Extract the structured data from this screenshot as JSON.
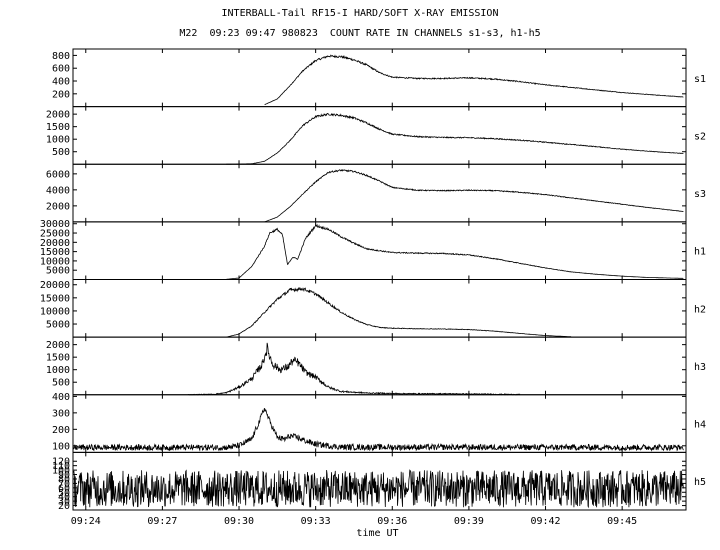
{
  "chart_data": {
    "type": "line",
    "title": "INTERBALL-Tail RF15-I HARD/SOFT X-RAY EMISSION",
    "subtitle": "M22  09:23 09:47 980823  COUNT RATE IN CHANNELS s1-s3, h1-h5",
    "xlabel": "time UT",
    "x_unit": "minutes after 09:00 UT",
    "xlim": [
      23.5,
      47.5
    ],
    "x_ticks": [
      24,
      27,
      30,
      33,
      36,
      39,
      42,
      45
    ],
    "x_tick_labels": [
      "09:24",
      "09:27",
      "09:30",
      "09:33",
      "09:36",
      "09:39",
      "09:42",
      "09:45"
    ],
    "panels": [
      {
        "name": "s1",
        "ylim": [
          0,
          900
        ],
        "yticks": [
          200,
          400,
          600,
          800
        ],
        "noise": 0.02,
        "noise_floor": 0,
        "x": [
          31.0,
          31.5,
          32.0,
          32.5,
          33.0,
          33.5,
          34.0,
          34.5,
          35.0,
          35.5,
          36.0,
          37.0,
          38.0,
          39.0,
          40.0,
          41.0,
          42.0,
          43.0,
          44.0,
          45.0,
          46.0,
          47.4
        ],
        "y": [
          30,
          120,
          330,
          560,
          720,
          790,
          780,
          730,
          650,
          530,
          460,
          440,
          440,
          450,
          430,
          390,
          340,
          300,
          260,
          220,
          190,
          150
        ]
      },
      {
        "name": "s2",
        "ylim": [
          0,
          2300
        ],
        "yticks": [
          500,
          1000,
          1500,
          2000
        ],
        "noise": 0.02,
        "noise_floor": 0,
        "x": [
          29.5,
          30.5,
          31.0,
          31.5,
          32.0,
          32.5,
          33.0,
          33.5,
          34.0,
          34.5,
          35.0,
          35.5,
          36.0,
          37.0,
          38.0,
          39.0,
          40.0,
          41.0,
          42.0,
          43.0,
          44.0,
          45.0,
          46.0,
          47.4
        ],
        "y": [
          0,
          20,
          120,
          450,
          950,
          1550,
          1900,
          2000,
          1950,
          1850,
          1650,
          1400,
          1200,
          1100,
          1070,
          1060,
          1020,
          960,
          880,
          790,
          700,
          600,
          520,
          430
        ]
      },
      {
        "name": "s3",
        "ylim": [
          0,
          7200
        ],
        "yticks": [
          2000,
          4000,
          6000
        ],
        "noise": 0.015,
        "noise_floor": 0,
        "x": [
          31.0,
          31.5,
          32.0,
          32.5,
          33.0,
          33.5,
          34.0,
          34.5,
          35.0,
          35.5,
          36.0,
          37.0,
          38.0,
          39.0,
          40.0,
          41.0,
          42.0,
          43.0,
          44.0,
          45.0,
          46.0,
          47.4
        ],
        "y": [
          0,
          600,
          1900,
          3500,
          5000,
          6200,
          6450,
          6300,
          5800,
          5100,
          4300,
          3950,
          3900,
          3950,
          3900,
          3700,
          3400,
          3000,
          2600,
          2200,
          1800,
          1300
        ]
      },
      {
        "name": "h1",
        "ylim": [
          0,
          31000
        ],
        "yticks": [
          5000,
          10000,
          15000,
          20000,
          25000,
          30000
        ],
        "noise": 0.02,
        "noise_floor": 0,
        "x": [
          29.5,
          30.0,
          30.5,
          31.0,
          31.2,
          31.5,
          31.7,
          31.9,
          32.1,
          32.3,
          32.6,
          33.0,
          33.5,
          34.0,
          34.5,
          35.0,
          36.0,
          37.0,
          38.0,
          39.0,
          40.0,
          41.0,
          42.0,
          43.0,
          44.0,
          45.0,
          46.0,
          47.4
        ],
        "y": [
          100,
          800,
          7000,
          18000,
          25000,
          27000,
          24000,
          8000,
          12000,
          11000,
          22000,
          29000,
          27000,
          23000,
          19500,
          16500,
          14500,
          14200,
          14000,
          13200,
          11200,
          8700,
          6200,
          4100,
          2800,
          1800,
          1100,
          600
        ]
      },
      {
        "name": "h2",
        "ylim": [
          0,
          22000
        ],
        "yticks": [
          5000,
          10000,
          15000,
          20000
        ],
        "noise": 0.035,
        "noise_floor": 0,
        "x": [
          29.5,
          30.0,
          30.5,
          31.0,
          31.5,
          32.0,
          32.5,
          33.0,
          33.5,
          34.0,
          34.5,
          35.0,
          35.5,
          36.0,
          37.0,
          38.0,
          39.0,
          40.0,
          41.0,
          42.0,
          43.0
        ],
        "y": [
          0,
          1200,
          4300,
          9500,
          14500,
          18000,
          18500,
          16500,
          13000,
          9500,
          6800,
          4800,
          3700,
          3400,
          3200,
          3100,
          2900,
          2300,
          1400,
          600,
          150
        ]
      },
      {
        "name": "h3",
        "ylim": [
          0,
          2300
        ],
        "yticks": [
          500,
          1000,
          1500,
          2000
        ],
        "noise": 0.12,
        "noise_floor": 15,
        "x": [
          28.0,
          29.0,
          29.5,
          30.0,
          30.5,
          30.9,
          31.1,
          31.3,
          31.6,
          31.9,
          32.1,
          32.3,
          32.6,
          33.0,
          33.5,
          34.0,
          35.0,
          36.0,
          37.0,
          38.0,
          39.0,
          40.0,
          41.0
        ],
        "y": [
          0,
          20,
          80,
          300,
          650,
          1200,
          1850,
          1250,
          1000,
          1100,
          1350,
          1300,
          900,
          700,
          300,
          130,
          70,
          50,
          40,
          40,
          30,
          20,
          10
        ]
      },
      {
        "name": "h4",
        "ylim": [
          60,
          410
        ],
        "yticks": [
          100,
          200,
          300,
          400
        ],
        "noise": 0,
        "noise_floor": 18,
        "x": [
          23.5,
          29.5,
          30.0,
          30.5,
          30.8,
          31.0,
          31.2,
          31.5,
          31.8,
          32.0,
          32.3,
          32.6,
          33.0,
          33.5,
          34.0,
          47.4
        ],
        "y": [
          90,
          90,
          100,
          140,
          250,
          330,
          250,
          150,
          140,
          160,
          150,
          130,
          110,
          100,
          92,
          90
        ]
      },
      {
        "name": "h5",
        "ylim": [
          10,
          140
        ],
        "yticks": [
          20,
          30,
          40,
          50,
          60,
          70,
          80,
          90,
          100,
          110,
          120
        ],
        "noise": 0,
        "noise_floor": 42,
        "x": [
          23.5,
          47.4
        ],
        "y": [
          58,
          58
        ]
      }
    ]
  }
}
